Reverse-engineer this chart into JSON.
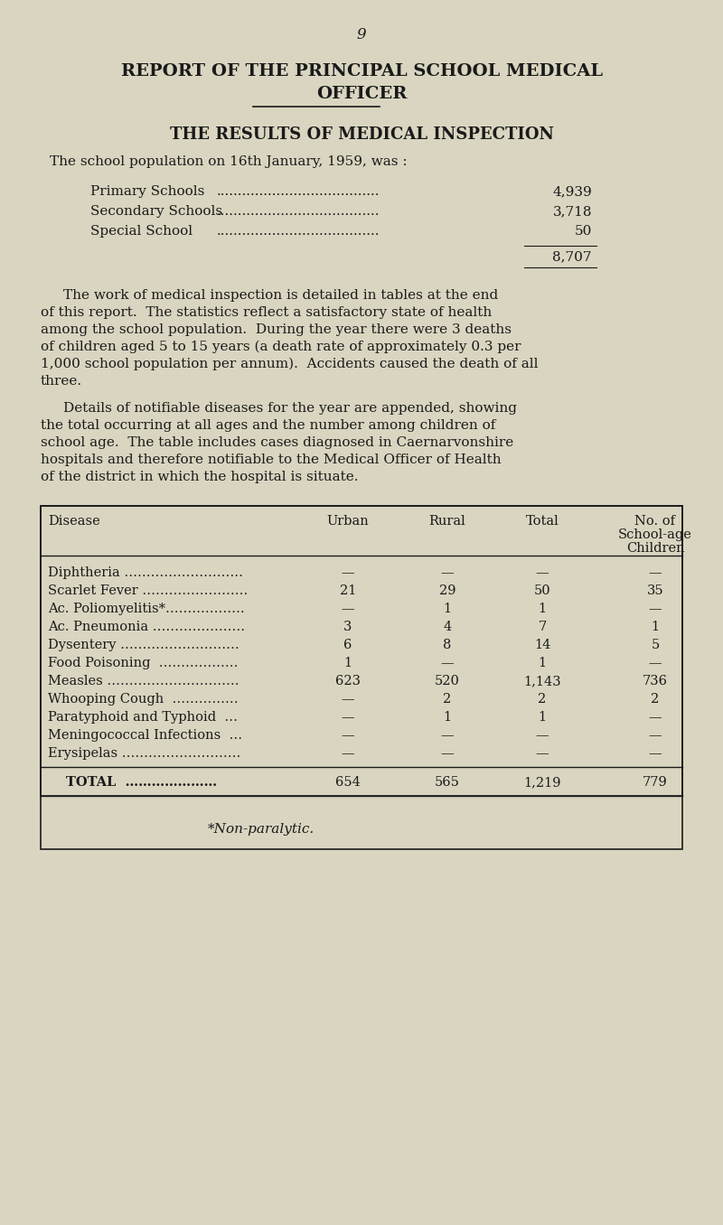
{
  "page_number": "9",
  "title_line1": "REPORT OF THE PRINCIPAL SCHOOL MEDICAL",
  "title_line2": "OFFICER",
  "section_title": "THE RESULTS OF MEDICAL INSPECTION",
  "intro_text": "The school population on 16th January, 1959, was :",
  "school_labels": [
    "Primary Schools",
    "Secondary Schools",
    "Special School"
  ],
  "school_dots": [
    "......................................",
    "......................................",
    "......................................"
  ],
  "school_values": [
    "4,939",
    "3,718",
    "50"
  ],
  "total_value": "8,707",
  "paragraph1": "The work of medical inspection is detailed in tables at the end of this report.  The statistics reflect a satisfactory state of health among the school population.  During the year there were 3 deaths of children aged 5 to 15 years (a death rate of approximately 0.3 per 1,000 school population per annum).  Accidents caused the death of all three.",
  "paragraph2": "Details of notifiable diseases for the year are appended, showing the total occurring at all ages and the number among children of school age.  The table includes cases diagnosed in Caernarvonshire hospitals and therefore notifiable to the Medical Officer of Health of the district in which the hospital is situate.",
  "table_headers": [
    "Disease",
    "Urban",
    "Rural",
    "Total",
    "No. of\nSchool-age\nChildren"
  ],
  "table_rows": [
    [
      "Diphtheria ………………………",
      "—",
      "—",
      "—",
      "—"
    ],
    [
      "Scarlet Fever ……………………",
      "21",
      "29",
      "50",
      "35"
    ],
    [
      "Ac. Poliomyelitis*………………",
      "—",
      "1",
      "1",
      "—"
    ],
    [
      "Ac. Pneumonia …………………",
      "3",
      "4",
      "7",
      "1"
    ],
    [
      "Dysentery ………………………",
      "6",
      "8",
      "14",
      "5"
    ],
    [
      "Food Poisoning  ………………",
      "1",
      "—",
      "1",
      "—"
    ],
    [
      "Measles …………………………",
      "623",
      "520",
      "1,143",
      "736"
    ],
    [
      "Whooping Cough  ……………",
      "—",
      "2",
      "2",
      "2"
    ],
    [
      "Paratyphoid and Typhoid  …",
      "—",
      "1",
      "1",
      "—"
    ],
    [
      "Meningococcal Infections  …",
      "—",
      "—",
      "—",
      "—"
    ],
    [
      "Erysipelas ………………………",
      "—",
      "—",
      "—",
      "—"
    ]
  ],
  "table_total_row": [
    "TOTAL  …………………",
    "654",
    "565",
    "1,219",
    "779"
  ],
  "footnote": "*Non-paralytic.",
  "bg_color": "#d9d5c0",
  "text_color": "#1a1a1a"
}
